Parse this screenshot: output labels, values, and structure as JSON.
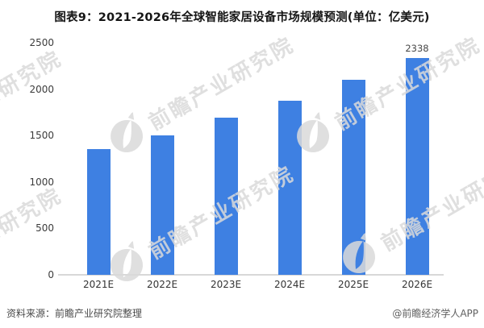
{
  "title": "图表9：2021-2026年全球智能家居设备市场规模预测(单位：亿美元)",
  "watermark": {
    "text": "前瞻产业研究院"
  },
  "footer": {
    "source": "资料来源：前瞻产业研究院整理",
    "credit": "@前瞻经济学人APP"
  },
  "colors": {
    "bar": "#3E80E2",
    "axis_text": "#3c3c3c",
    "baseline": "#d8d8d8",
    "title_text": "#151515",
    "footer_text": "#4a4a4a",
    "watermark": "#dadada",
    "data_label": "#474747"
  },
  "chart_data": {
    "type": "bar",
    "title": "图表9：2021-2026年全球智能家居设备市场规模预测(单位：亿美元)",
    "unit": "亿美元",
    "categories": [
      "2021E",
      "2022E",
      "2023E",
      "2024E",
      "2025E",
      "2026E"
    ],
    "values": [
      1355,
      1500,
      1695,
      1875,
      2100,
      2338
    ],
    "data_labels": [
      "",
      "",
      "",
      "",
      "",
      "2338"
    ],
    "xlabel": "",
    "ylabel": "",
    "ylim": [
      0,
      2500
    ],
    "yticks": [
      0,
      500,
      1000,
      1500,
      2000,
      2500
    ],
    "grid": false,
    "legend": "none",
    "bar_color": "#3E80E2"
  }
}
